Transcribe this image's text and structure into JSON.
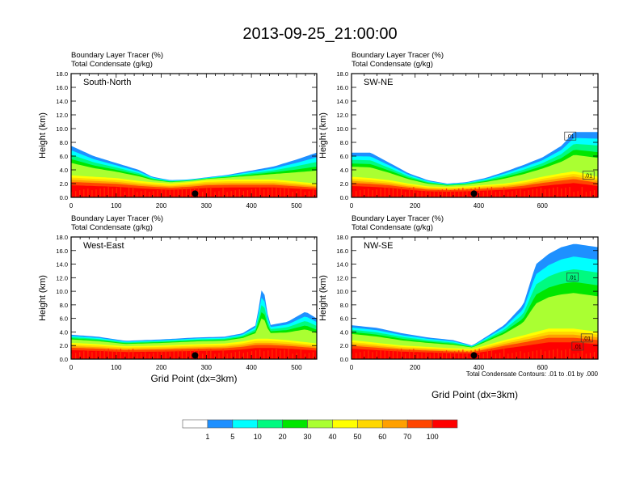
{
  "title": "2013-09-25_21:00:00",
  "chart_data": [
    {
      "type": "heatmap",
      "panel": "top-left",
      "title": "South-North",
      "header": [
        "Boundary Layer Tracer   (%)",
        "Total Condensate   (g/kg)"
      ],
      "xlabel": "",
      "ylabel": "Height (km)",
      "xlim": [
        0,
        545
      ],
      "ylim": [
        0,
        18
      ],
      "xticks": [
        0,
        100,
        200,
        300,
        400,
        500
      ],
      "yticks": [
        "0.0",
        "2.0",
        "4.0",
        "6.0",
        "8.0",
        "10.0",
        "12.0",
        "14.0",
        "16.0",
        "18.0"
      ],
      "marker_x": 275,
      "profile": {
        "x": [
          0,
          50,
          100,
          150,
          180,
          220,
          260,
          300,
          350,
          400,
          450,
          500,
          545
        ],
        "top_km": [
          7.5,
          6.0,
          5.0,
          4.0,
          3.0,
          2.5,
          2.6,
          2.9,
          3.3,
          3.9,
          4.5,
          5.5,
          6.5
        ],
        "bl_km": [
          3.2,
          3.0,
          2.8,
          2.4,
          2.2,
          2.0,
          2.2,
          2.5,
          2.6,
          2.6,
          2.6,
          2.3,
          2.0
        ]
      }
    },
    {
      "type": "heatmap",
      "panel": "top-right",
      "title": "SW-NE",
      "header": [
        "Boundary Layer Tracer   (%)",
        "Total Condensate   (g/kg)"
      ],
      "xlabel": "",
      "ylabel": "Height (km)",
      "xlim": [
        0,
        775
      ],
      "ylim": [
        0,
        18
      ],
      "xticks": [
        0,
        200,
        400,
        600
      ],
      "yticks": [
        "0.0",
        "2.0",
        "4.0",
        "6.0",
        "8.0",
        "10.0",
        "12.0",
        "14.0",
        "16.0",
        "18.0"
      ],
      "marker_x": 385,
      "contour_labels": [
        ".01",
        ".01"
      ],
      "profile": {
        "x": [
          0,
          60,
          120,
          180,
          240,
          300,
          360,
          420,
          480,
          540,
          600,
          660,
          700,
          775
        ],
        "top_km": [
          6.5,
          6.5,
          5.0,
          3.5,
          2.5,
          2.0,
          2.2,
          2.8,
          3.7,
          4.7,
          5.8,
          7.5,
          9.5,
          9.5
        ],
        "bl_km": [
          3.0,
          2.8,
          2.5,
          2.0,
          1.6,
          1.5,
          1.6,
          1.8,
          2.0,
          2.4,
          3.0,
          3.5,
          3.8,
          3.0
        ]
      }
    },
    {
      "type": "heatmap",
      "panel": "bottom-left",
      "title": "West-East",
      "header": [
        "Boundary Layer Tracer   (%)",
        "Total Condensate   (g/kg)"
      ],
      "xlabel": "Grid Point (dx=3km)",
      "ylabel": "Height (km)",
      "xlim": [
        0,
        545
      ],
      "ylim": [
        0,
        18
      ],
      "xticks": [
        0,
        100,
        200,
        300,
        400,
        500
      ],
      "yticks": [
        "0.0",
        "2.0",
        "4.0",
        "6.0",
        "8.0",
        "10.0",
        "12.0",
        "14.0",
        "16.0",
        "18.0"
      ],
      "marker_x": 275,
      "profile": {
        "x": [
          0,
          60,
          120,
          200,
          280,
          340,
          380,
          410,
          425,
          440,
          480,
          520,
          545
        ],
        "top_km": [
          3.6,
          3.3,
          2.7,
          2.9,
          3.2,
          3.3,
          3.8,
          5.0,
          11.2,
          5.0,
          5.5,
          7.0,
          6.0
        ],
        "bl_km": [
          2.4,
          2.2,
          1.9,
          2.0,
          2.2,
          2.3,
          2.6,
          3.0,
          3.0,
          3.0,
          2.8,
          2.5,
          2.3
        ]
      }
    },
    {
      "type": "heatmap",
      "panel": "bottom-right",
      "title": "NW-SE",
      "header": [
        "Boundary Layer Tracer   (%)",
        "Total Condensate   (g/kg)"
      ],
      "xlabel": "Grid Point (dx=3km)",
      "ylabel": "Height (km)",
      "xlim": [
        0,
        775
      ],
      "ylim": [
        0,
        18
      ],
      "xticks": [
        0,
        200,
        400,
        600
      ],
      "yticks": [
        "0.0",
        "2.0",
        "4.0",
        "6.0",
        "8.0",
        "10.0",
        "12.0",
        "14.0",
        "16.0",
        "18.0"
      ],
      "marker_x": 385,
      "contour_labels": [
        ".01",
        ".01",
        ".01"
      ],
      "note": "Total Condensate Contours: .01 to .01 by .000",
      "profile": {
        "x": [
          0,
          80,
          160,
          240,
          320,
          380,
          420,
          480,
          540,
          580,
          620,
          660,
          700,
          775
        ],
        "top_km": [
          5.0,
          4.6,
          3.8,
          3.2,
          2.8,
          2.0,
          3.2,
          5.0,
          8.0,
          14.0,
          15.5,
          16.5,
          17.0,
          16.5
        ],
        "bl_km": [
          2.8,
          2.4,
          2.0,
          1.8,
          1.6,
          1.5,
          2.0,
          2.8,
          3.5,
          4.0,
          4.5,
          4.5,
          4.5,
          4.0
        ]
      }
    }
  ],
  "colorbar": {
    "labels": [
      "1",
      "5",
      "10",
      "20",
      "30",
      "40",
      "50",
      "60",
      "70",
      "100"
    ],
    "colors": [
      "#ffffff",
      "#1e90ff",
      "#00ffff",
      "#00fa80",
      "#00e600",
      "#aaff32",
      "#ffff00",
      "#ffd700",
      "#ffa000",
      "#ff4500",
      "#ff0000"
    ]
  }
}
